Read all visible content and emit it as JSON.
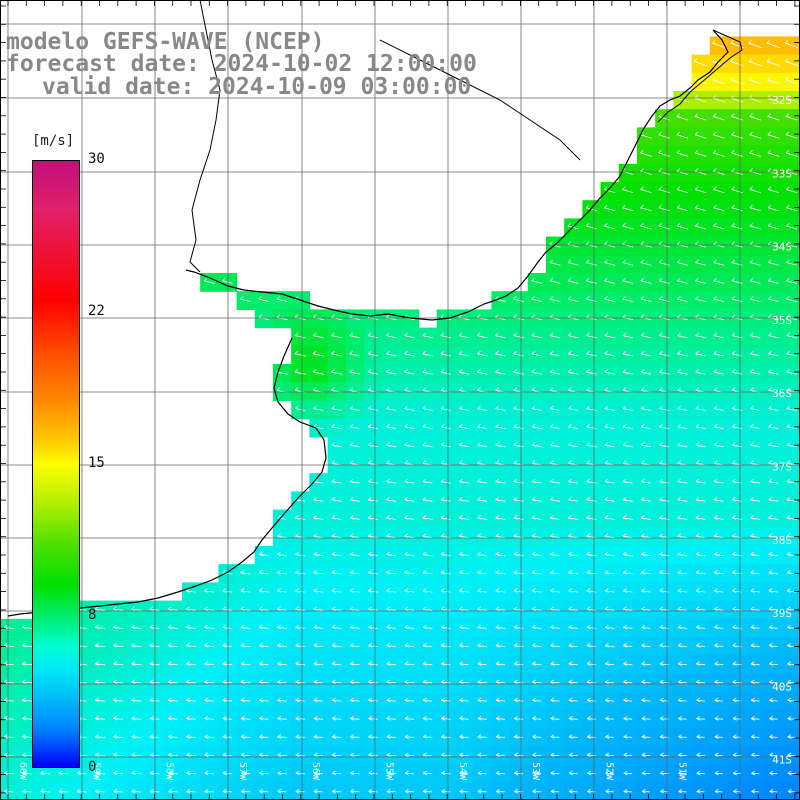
{
  "title": {
    "line1": "modelo GEFS-WAVE (NCEP)",
    "line2": "forecast date: 2024-10-02 12:00:00",
    "line3": "valid date: 2024-10-09 03:00:00"
  },
  "colorbar": {
    "unit": "[m/s]",
    "ticks": [
      "30",
      "22",
      "15",
      "8",
      "0"
    ]
  },
  "lat_labels": [
    "32S",
    "33S",
    "34S",
    "35S",
    "36S",
    "37S",
    "38S",
    "39S",
    "40S",
    "41S"
  ],
  "lon_labels": [
    "60W",
    "59W",
    "58W",
    "57W",
    "56W",
    "55W",
    "54W",
    "53W",
    "52W",
    "51W"
  ],
  "colors": {
    "land": "#ffffff",
    "grid": "#666666",
    "coast": "#000000",
    "arrow": "#ffffff",
    "title": "#888888"
  }
}
